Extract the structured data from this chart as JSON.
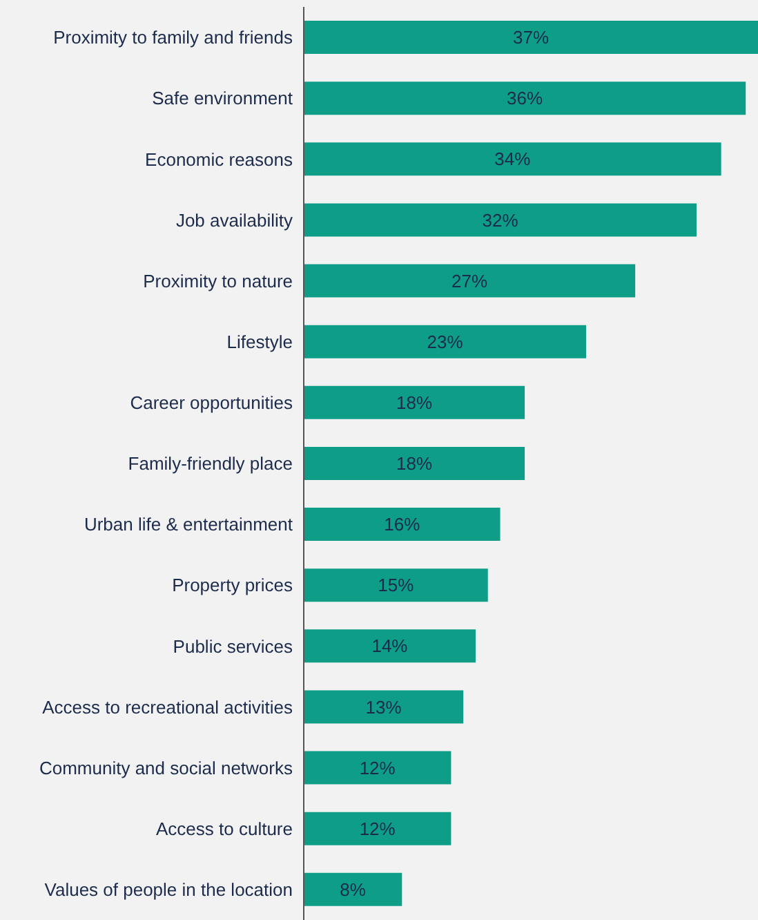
{
  "chart_data": {
    "type": "bar",
    "orientation": "horizontal",
    "categories": [
      "Proximity to family and friends",
      "Safe environment",
      "Economic reasons",
      "Job availability",
      "Proximity to nature",
      "Lifestyle",
      "Career opportunities",
      "Family-friendly place",
      "Urban life & entertainment",
      "Property prices",
      "Public services",
      "Access to recreational activities",
      "Community and social networks",
      "Access to culture",
      "Values of people in the location"
    ],
    "values": [
      37,
      36,
      34,
      32,
      27,
      23,
      18,
      18,
      16,
      15,
      14,
      13,
      12,
      12,
      8
    ],
    "value_labels": [
      "37%",
      "36%",
      "34%",
      "32%",
      "27%",
      "23%",
      "18%",
      "18%",
      "16%",
      "15%",
      "14%",
      "13%",
      "12%",
      "12%",
      "8%"
    ],
    "color": "#0e9e88"
  }
}
